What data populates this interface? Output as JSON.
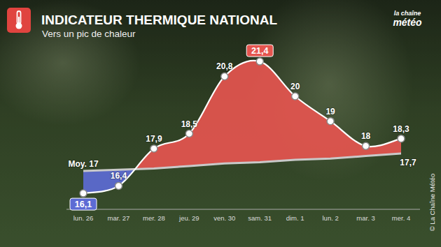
{
  "chart_data": {
    "type": "line",
    "title": "INDICATEUR THERMIQUE NATIONAL",
    "subtitle": "Vers un pic de chaleur",
    "annotations": [
      "la chaîne",
      "météo",
      "© La Chaîne Météo"
    ],
    "categories": [
      "lun. 26",
      "mar. 27",
      "mer. 28",
      "jeu. 29",
      "ven. 30",
      "sam. 31",
      "dim. 1",
      "lun. 2",
      "mar. 3",
      "mer. 4"
    ],
    "series": [
      {
        "color": "#ffffff",
        "values": [
          16.1,
          16.4,
          17.9,
          18.5,
          20.8,
          21.4,
          20,
          19,
          18,
          18.3
        ],
        "value_labels": [
          "16,1",
          "16,4",
          "17,9",
          "18,5",
          "20,8",
          "21,4",
          "20",
          "19",
          "18",
          "18,3"
        ]
      },
      {
        "color": "#c9c9c9",
        "values": [
          17,
          17.05,
          17.1,
          17.2,
          17.3,
          17.35,
          17.45,
          17.5,
          17.6,
          17.7
        ],
        "value_labels": [
          "Moy. 17",
          null,
          null,
          null,
          null,
          null,
          null,
          null,
          null,
          "17,7"
        ]
      }
    ],
    "ylim": [
      15.5,
      22.3
    ],
    "tick_labels": "x",
    "data_labels": true
  }
}
